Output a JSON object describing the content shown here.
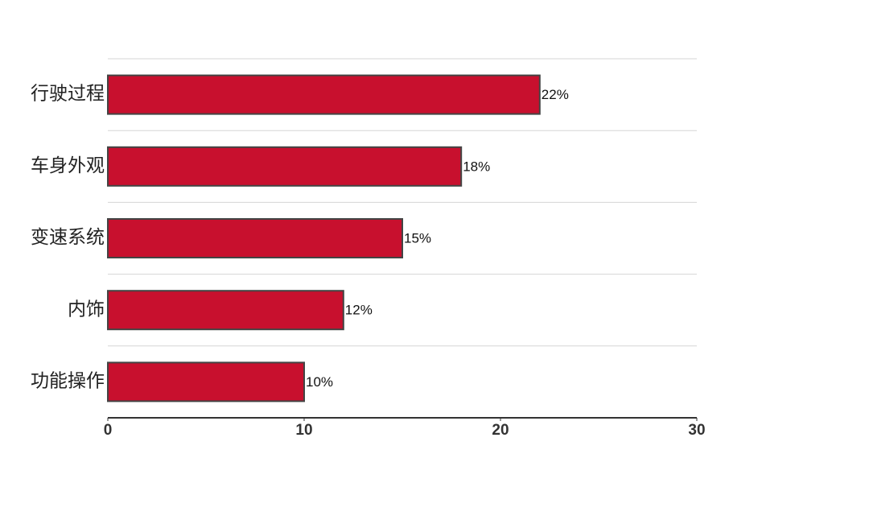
{
  "chart_data": {
    "type": "bar",
    "orientation": "horizontal",
    "categories": [
      "行驶过程",
      "车身外观",
      "变速系统",
      "内饰",
      "功能操作"
    ],
    "values": [
      22,
      18,
      15,
      12,
      10
    ],
    "value_labels": [
      "22%",
      "18%",
      "15%",
      "12%",
      "10%"
    ],
    "color": "#c8102e",
    "xlim": [
      0,
      30
    ],
    "xticks": [
      0,
      10,
      20,
      30
    ]
  }
}
